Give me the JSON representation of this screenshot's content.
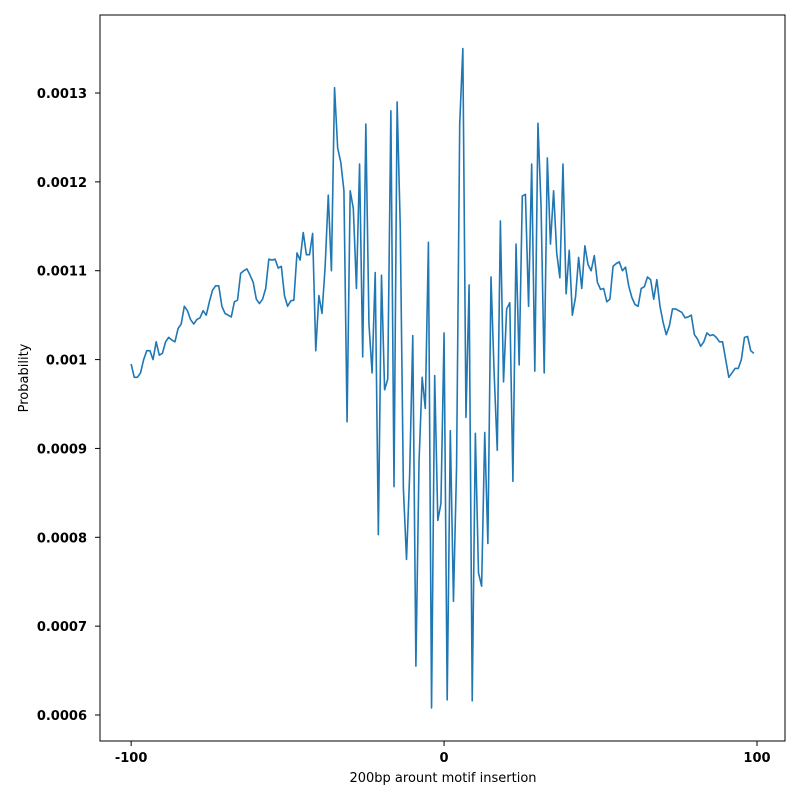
{
  "chart_data": {
    "type": "line",
    "xlabel": "200bp arount motif insertion",
    "ylabel": "Probability",
    "x": [
      -100,
      -99,
      -98,
      -97,
      -96,
      -95,
      -94,
      -93,
      -92,
      -91,
      -90,
      -89,
      -88,
      -87,
      -86,
      -85,
      -84,
      -83,
      -82,
      -81,
      -80,
      -79,
      -78,
      -77,
      -76,
      -75,
      -74,
      -73,
      -72,
      -71,
      -70,
      -69,
      -68,
      -67,
      -66,
      -65,
      -64,
      -63,
      -62,
      -61,
      -60,
      -59,
      -58,
      -57,
      -56,
      -55,
      -54,
      -53,
      -52,
      -51,
      -50,
      -49,
      -48,
      -47,
      -46,
      -45,
      -44,
      -43,
      -42,
      -41,
      -40,
      -39,
      -38,
      -37,
      -36,
      -35,
      -34,
      -33,
      -32,
      -31,
      -30,
      -29,
      -28,
      -27,
      -26,
      -25,
      -24,
      -23,
      -22,
      -21,
      -20,
      -19,
      -18,
      -17,
      -16,
      -15,
      -14,
      -13,
      -12,
      -11,
      -10,
      -9,
      -8,
      -7,
      -6,
      -5,
      -4,
      -3,
      -2,
      -1,
      0,
      1,
      2,
      3,
      4,
      5,
      6,
      7,
      8,
      9,
      10,
      11,
      12,
      13,
      14,
      15,
      16,
      17,
      18,
      19,
      20,
      21,
      22,
      23,
      24,
      25,
      26,
      27,
      28,
      29,
      30,
      31,
      32,
      33,
      34,
      35,
      36,
      37,
      38,
      39,
      40,
      41,
      42,
      43,
      44,
      45,
      46,
      47,
      48,
      49,
      50,
      51,
      52,
      53,
      54,
      55,
      56,
      57,
      58,
      59,
      60,
      61,
      62,
      63,
      64,
      65,
      66,
      67,
      68,
      69,
      70,
      71,
      72,
      73,
      74,
      75,
      76,
      77,
      78,
      79,
      80,
      81,
      82,
      83,
      84,
      85,
      86,
      87,
      88,
      89,
      90,
      91,
      92,
      93,
      94,
      95,
      96,
      97,
      98,
      99
    ],
    "series": [
      {
        "color": "#1f77b4",
        "values": [
          0.000995,
          0.00098,
          0.00098,
          0.000985,
          0.001,
          0.00101,
          0.00101,
          0.001,
          0.00102,
          0.001005,
          0.001007,
          0.00102,
          0.001025,
          0.001022,
          0.00102,
          0.001035,
          0.00104,
          0.00106,
          0.001055,
          0.001045,
          0.00104,
          0.001045,
          0.001047,
          0.001055,
          0.00105,
          0.001065,
          0.001078,
          0.001083,
          0.001083,
          0.00106,
          0.001052,
          0.00105,
          0.001048,
          0.001065,
          0.001067,
          0.001097,
          0.0011,
          0.001102,
          0.001095,
          0.001087,
          0.001068,
          0.001063,
          0.001068,
          0.00108,
          0.001113,
          0.001112,
          0.001113,
          0.001103,
          0.001105,
          0.001072,
          0.00106,
          0.001066,
          0.001067,
          0.00112,
          0.001112,
          0.001143,
          0.001118,
          0.001118,
          0.001142,
          0.00101,
          0.001072,
          0.001052,
          0.001105,
          0.001185,
          0.0011,
          0.001306,
          0.001238,
          0.001222,
          0.00119,
          0.00093,
          0.00119,
          0.00117,
          0.00108,
          0.00122,
          0.001003,
          0.001265,
          0.00104,
          0.000985,
          0.001098,
          0.000803,
          0.001095,
          0.000966,
          0.000978,
          0.00128,
          0.000857,
          0.00129,
          0.00115,
          0.000855,
          0.000775,
          0.00087,
          0.001027,
          0.000655,
          0.000885,
          0.00098,
          0.000945,
          0.001132,
          0.000608,
          0.000982,
          0.000819,
          0.000838,
          0.00103,
          0.000617,
          0.00092,
          0.000728,
          0.00088,
          0.001265,
          0.00135,
          0.000935,
          0.001084,
          0.000616,
          0.000917,
          0.00076,
          0.000745,
          0.000918,
          0.000793,
          0.001093,
          0.000985,
          0.000898,
          0.001156,
          0.000975,
          0.001057,
          0.001064,
          0.000863,
          0.00113,
          0.000994,
          0.001184,
          0.001186,
          0.00106,
          0.00122,
          0.000987,
          0.001266,
          0.001172,
          0.000985,
          0.001227,
          0.00113,
          0.00119,
          0.00112,
          0.001092,
          0.00122,
          0.001074,
          0.001123,
          0.00105,
          0.00107,
          0.001115,
          0.00108,
          0.001128,
          0.001107,
          0.0011,
          0.001117,
          0.001087,
          0.001079,
          0.00108,
          0.001065,
          0.001068,
          0.001105,
          0.001108,
          0.00111,
          0.0011,
          0.001104,
          0.001083,
          0.00107,
          0.001062,
          0.00106,
          0.00108,
          0.001082,
          0.001093,
          0.00109,
          0.001068,
          0.00109,
          0.00106,
          0.001042,
          0.001028,
          0.001038,
          0.001057,
          0.001057,
          0.001055,
          0.001053,
          0.001047,
          0.001048,
          0.00105,
          0.001028,
          0.001023,
          0.001015,
          0.00102,
          0.00103,
          0.001027,
          0.001028,
          0.001025,
          0.00102,
          0.00102,
          0.001,
          0.00098,
          0.000985,
          0.00099,
          0.00099,
          0.001,
          0.001025,
          0.001026,
          0.00101,
          0.001007
        ]
      }
    ],
    "xlim": [
      -109.95,
      108.95
    ],
    "ylim": [
      0.00057074,
      0.0013878
    ],
    "xticks": [
      -100,
      0,
      100
    ],
    "yticks": [
      0.0006,
      0.0007,
      0.0008,
      0.0009,
      0.001,
      0.0011,
      0.0012,
      0.0013
    ]
  }
}
